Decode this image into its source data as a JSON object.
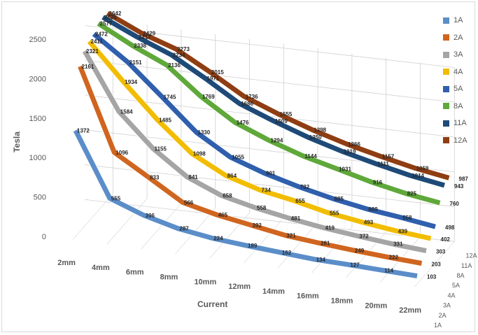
{
  "chart_data": {
    "type": "line",
    "title": "",
    "xlabel": "Current",
    "ylabel": "Tesla",
    "ylim": [
      0,
      2500
    ],
    "y_ticks": [
      0,
      500,
      1000,
      1500,
      2000,
      2500
    ],
    "categories": [
      "2mm",
      "4mm",
      "6mm",
      "8mm",
      "10mm",
      "12mm",
      "14mm",
      "16mm",
      "18mm",
      "20mm",
      "22mm"
    ],
    "depth_labels": [
      "1A",
      "2A",
      "3A",
      "4A",
      "5A",
      "8A",
      "11A",
      "12A"
    ],
    "grid": true,
    "legend_position": "right",
    "series": [
      {
        "name": "1A",
        "color": "#5b8ec9",
        "values": [
          1372,
          555,
          396,
          287,
          224,
          189,
          162,
          134,
          127,
          114,
          103
        ]
      },
      {
        "name": "2A",
        "color": "#d0651f",
        "values": [
          2161,
          1096,
          833,
          566,
          465,
          392,
          321,
          281,
          249,
          222,
          203
        ]
      },
      {
        "name": "3A",
        "color": "#a5a5a5",
        "values": [
          2321,
          1584,
          1155,
          841,
          658,
          558,
          481,
          419,
          372,
          331,
          303
        ]
      },
      {
        "name": "4A",
        "color": "#f2bd00",
        "values": [
          2411,
          1934,
          1485,
          1098,
          864,
          734,
          655,
          555,
          493,
          439,
          402
        ]
      },
      {
        "name": "5A",
        "color": "#2f5fad",
        "values": [
          2472,
          2151,
          1745,
          1330,
          1055,
          901,
          782,
          685,
          609,
          558,
          498
        ]
      },
      {
        "name": "8A",
        "color": "#5fa83a",
        "values": [
          2577,
          2338,
          2136,
          1769,
          1476,
          1294,
          1144,
          1031,
          916,
          825,
          760
        ]
      },
      {
        "name": "11A",
        "color": "#1e4a78",
        "values": [
          2626,
          2417,
          2234,
          1971,
          1686,
          1509,
          1350,
          1219,
          1111,
          1014,
          943
        ]
      },
      {
        "name": "12A",
        "color": "#8f3d12",
        "values": [
          2642,
          2429,
          2273,
          2015,
          1736,
          1555,
          1398,
          1266,
          1157,
          1059,
          987
        ]
      }
    ]
  }
}
